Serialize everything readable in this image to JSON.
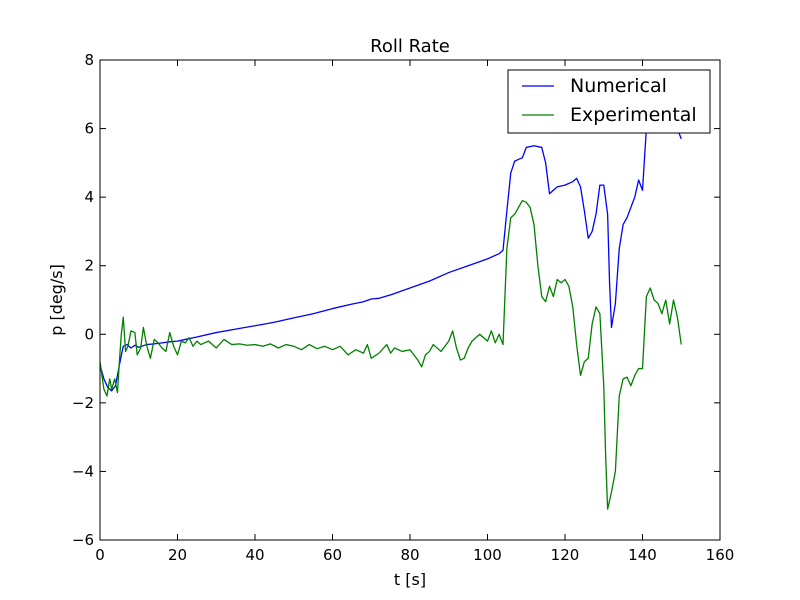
{
  "chart_data": {
    "type": "line",
    "title": "Roll Rate",
    "xlabel": "t [s]",
    "ylabel": "p [deg/s]",
    "xlim": [
      0,
      160
    ],
    "ylim": [
      -6,
      8
    ],
    "xticks": [
      0,
      20,
      40,
      60,
      80,
      100,
      120,
      140,
      160
    ],
    "yticks": [
      -6,
      -4,
      -2,
      0,
      2,
      4,
      6,
      8
    ],
    "grid": false,
    "legend_position": "top-right",
    "series": [
      {
        "name": "Numerical",
        "color": "#0000ff",
        "points": [
          [
            0,
            -0.9
          ],
          [
            1,
            -1.3
          ],
          [
            2,
            -1.55
          ],
          [
            3,
            -1.65
          ],
          [
            4,
            -1.5
          ],
          [
            5,
            -0.9
          ],
          [
            6,
            -0.35
          ],
          [
            7,
            -0.3
          ],
          [
            8,
            -0.4
          ],
          [
            9,
            -0.32
          ],
          [
            10,
            -0.38
          ],
          [
            12,
            -0.3
          ],
          [
            14,
            -0.28
          ],
          [
            16,
            -0.25
          ],
          [
            18,
            -0.22
          ],
          [
            20,
            -0.2
          ],
          [
            22,
            -0.15
          ],
          [
            25,
            -0.08
          ],
          [
            30,
            0.05
          ],
          [
            35,
            0.15
          ],
          [
            40,
            0.25
          ],
          [
            45,
            0.35
          ],
          [
            50,
            0.48
          ],
          [
            55,
            0.6
          ],
          [
            60,
            0.75
          ],
          [
            65,
            0.88
          ],
          [
            68,
            0.95
          ],
          [
            70,
            1.03
          ],
          [
            72,
            1.05
          ],
          [
            75,
            1.15
          ],
          [
            80,
            1.35
          ],
          [
            85,
            1.55
          ],
          [
            90,
            1.8
          ],
          [
            95,
            2.0
          ],
          [
            100,
            2.2
          ],
          [
            103,
            2.35
          ],
          [
            104,
            2.45
          ],
          [
            105,
            3.6
          ],
          [
            106,
            4.7
          ],
          [
            107,
            5.05
          ],
          [
            108,
            5.1
          ],
          [
            109,
            5.15
          ],
          [
            110,
            5.45
          ],
          [
            112,
            5.5
          ],
          [
            114,
            5.45
          ],
          [
            115,
            5.0
          ],
          [
            116,
            4.1
          ],
          [
            117,
            4.2
          ],
          [
            118,
            4.3
          ],
          [
            120,
            4.35
          ],
          [
            122,
            4.45
          ],
          [
            123,
            4.55
          ],
          [
            124,
            4.3
          ],
          [
            125,
            3.6
          ],
          [
            126,
            2.8
          ],
          [
            127,
            3.0
          ],
          [
            128,
            3.5
          ],
          [
            129,
            4.35
          ],
          [
            130,
            4.35
          ],
          [
            131,
            3.5
          ],
          [
            131.5,
            1.5
          ],
          [
            132,
            0.2
          ],
          [
            133,
            0.9
          ],
          [
            134,
            2.5
          ],
          [
            135,
            3.2
          ],
          [
            136,
            3.4
          ],
          [
            137,
            3.7
          ],
          [
            138,
            4.0
          ],
          [
            139,
            4.5
          ],
          [
            140,
            4.2
          ],
          [
            141,
            6.0
          ],
          [
            141.5,
            6.4
          ],
          [
            148,
            6.4
          ],
          [
            149,
            6.0
          ],
          [
            150,
            5.7
          ]
        ]
      },
      {
        "name": "Experimental",
        "color": "#008000",
        "points": [
          [
            0,
            -0.8
          ],
          [
            1,
            -1.6
          ],
          [
            1.8,
            -1.8
          ],
          [
            2.5,
            -1.3
          ],
          [
            3,
            -1.6
          ],
          [
            3.8,
            -1.3
          ],
          [
            4.5,
            -1.7
          ],
          [
            5,
            -0.8
          ],
          [
            5.5,
            0.0
          ],
          [
            6,
            0.5
          ],
          [
            6.6,
            -0.5
          ],
          [
            7.2,
            -0.35
          ],
          [
            8,
            0.1
          ],
          [
            9,
            0.05
          ],
          [
            9.6,
            -0.6
          ],
          [
            10.5,
            -0.4
          ],
          [
            11.2,
            0.2
          ],
          [
            12,
            -0.3
          ],
          [
            13,
            -0.7
          ],
          [
            14,
            -0.15
          ],
          [
            15,
            -0.25
          ],
          [
            16,
            -0.4
          ],
          [
            17,
            -0.5
          ],
          [
            18,
            0.05
          ],
          [
            19,
            -0.35
          ],
          [
            20,
            -0.6
          ],
          [
            21,
            -0.2
          ],
          [
            22,
            -0.25
          ],
          [
            23,
            -0.1
          ],
          [
            24,
            -0.35
          ],
          [
            25,
            -0.2
          ],
          [
            26,
            -0.3
          ],
          [
            28,
            -0.2
          ],
          [
            30,
            -0.4
          ],
          [
            32,
            -0.15
          ],
          [
            34,
            -0.3
          ],
          [
            36,
            -0.28
          ],
          [
            38,
            -0.32
          ],
          [
            40,
            -0.3
          ],
          [
            42,
            -0.35
          ],
          [
            44,
            -0.28
          ],
          [
            46,
            -0.4
          ],
          [
            48,
            -0.3
          ],
          [
            50,
            -0.35
          ],
          [
            52,
            -0.45
          ],
          [
            54,
            -0.3
          ],
          [
            56,
            -0.42
          ],
          [
            58,
            -0.35
          ],
          [
            60,
            -0.45
          ],
          [
            62,
            -0.35
          ],
          [
            64,
            -0.6
          ],
          [
            66,
            -0.45
          ],
          [
            68,
            -0.55
          ],
          [
            69,
            -0.3
          ],
          [
            70,
            -0.7
          ],
          [
            72,
            -0.55
          ],
          [
            74,
            -0.3
          ],
          [
            75,
            -0.55
          ],
          [
            76,
            -0.4
          ],
          [
            78,
            -0.5
          ],
          [
            80,
            -0.45
          ],
          [
            82,
            -0.75
          ],
          [
            83,
            -0.95
          ],
          [
            84,
            -0.6
          ],
          [
            85,
            -0.5
          ],
          [
            86,
            -0.3
          ],
          [
            88,
            -0.5
          ],
          [
            90,
            -0.2
          ],
          [
            91,
            0.1
          ],
          [
            92,
            -0.4
          ],
          [
            93,
            -0.75
          ],
          [
            94,
            -0.7
          ],
          [
            95,
            -0.4
          ],
          [
            96,
            -0.2
          ],
          [
            98,
            0.0
          ],
          [
            100,
            -0.2
          ],
          [
            101,
            0.1
          ],
          [
            102,
            -0.25
          ],
          [
            103,
            0.0
          ],
          [
            104,
            -0.3
          ],
          [
            105,
            2.5
          ],
          [
            106,
            3.4
          ],
          [
            107,
            3.5
          ],
          [
            108,
            3.7
          ],
          [
            109,
            3.9
          ],
          [
            110,
            3.85
          ],
          [
            111,
            3.7
          ],
          [
            112,
            3.2
          ],
          [
            113,
            2.0
          ],
          [
            114,
            1.1
          ],
          [
            115,
            0.95
          ],
          [
            116,
            1.4
          ],
          [
            117,
            1.1
          ],
          [
            118,
            1.6
          ],
          [
            119,
            1.5
          ],
          [
            120,
            1.6
          ],
          [
            121,
            1.4
          ],
          [
            122,
            0.8
          ],
          [
            123,
            -0.3
          ],
          [
            124,
            -1.2
          ],
          [
            125,
            -0.8
          ],
          [
            126,
            -0.7
          ],
          [
            127,
            0.3
          ],
          [
            128,
            0.8
          ],
          [
            129,
            0.6
          ],
          [
            130,
            -1.5
          ],
          [
            130.5,
            -3.6
          ],
          [
            131,
            -5.1
          ],
          [
            132,
            -4.6
          ],
          [
            133,
            -4.0
          ],
          [
            134,
            -1.8
          ],
          [
            135,
            -1.3
          ],
          [
            136,
            -1.25
          ],
          [
            137,
            -1.5
          ],
          [
            138,
            -1.2
          ],
          [
            139,
            -1.0
          ],
          [
            140,
            -1.0
          ],
          [
            141,
            1.1
          ],
          [
            142,
            1.35
          ],
          [
            143,
            1.0
          ],
          [
            144,
            0.9
          ],
          [
            145,
            0.6
          ],
          [
            146,
            1.0
          ],
          [
            147,
            0.3
          ],
          [
            148,
            1.0
          ],
          [
            149,
            0.5
          ],
          [
            150,
            -0.3
          ]
        ]
      }
    ]
  }
}
